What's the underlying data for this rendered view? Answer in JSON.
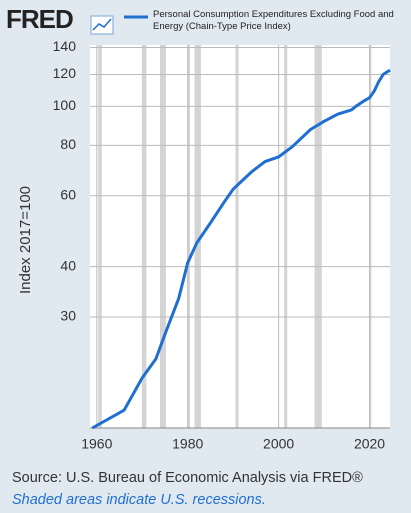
{
  "logo": "FRED",
  "chart_data": {
    "type": "line",
    "y_label": "Index 2017=100",
    "x": [
      1959,
      1966,
      1970,
      1973,
      1975,
      1978,
      1980,
      1982,
      1985,
      1988,
      1990,
      1994,
      1997,
      2000,
      2003,
      2007,
      2010,
      2013,
      2016,
      2017,
      2019,
      2020,
      2021,
      2022,
      2023,
      2024.5
    ],
    "series": [
      {
        "name": "Personal Consumption Expenditures Excluding Food and Energy (Chain-Type Price Index)",
        "color": "#1f6fd1",
        "values": [
          15.9,
          17.6,
          21.2,
          23.6,
          27.2,
          33.3,
          40.9,
          45.8,
          51.4,
          57.8,
          62.3,
          68.7,
          72.9,
          74.9,
          79.4,
          87.6,
          91.8,
          95.6,
          98,
          100,
          103.5,
          105,
          109,
          115,
          120,
          123
        ]
      }
    ],
    "xlim": [
      1958.5,
      2024.5
    ],
    "xticks": [
      1960,
      1980,
      2000,
      2020
    ],
    "ylim": [
      15.9,
      142
    ],
    "yticks": [
      30,
      40,
      60,
      80,
      100,
      120,
      140
    ],
    "log_y": true,
    "grid": true,
    "recessions": [
      [
        1960.3,
        1961.1
      ],
      [
        1969.9,
        1970.9
      ],
      [
        1973.9,
        1975.2
      ],
      [
        1980.0,
        1980.5
      ],
      [
        1981.5,
        1982.9
      ],
      [
        1990.5,
        1991.2
      ],
      [
        2001.2,
        2001.9
      ],
      [
        2007.9,
        2009.5
      ],
      [
        2020.1,
        2020.4
      ]
    ],
    "recession_color": "#d4d4d4",
    "source": "Source: U.S. Bureau of Economic Analysis via FRED®",
    "note": "Shaded areas indicate U.S. recessions."
  }
}
